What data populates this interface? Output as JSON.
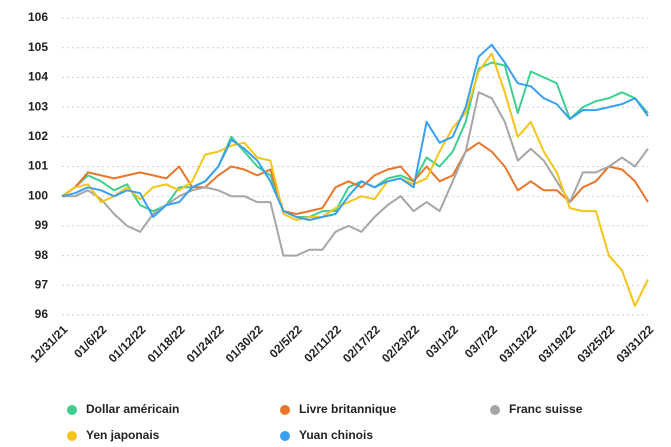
{
  "chart_data": {
    "type": "line",
    "categories": [
      "12/31/21",
      null,
      null,
      "01/6/22",
      null,
      null,
      "01/12/22",
      null,
      null,
      "01/18/22",
      null,
      null,
      "01/24/22",
      null,
      null,
      "01/30/22",
      null,
      null,
      "02/5/22",
      null,
      null,
      "02/11/22",
      null,
      null,
      "02/17/22",
      null,
      null,
      "02/23/22",
      null,
      null,
      "03/1/22",
      null,
      null,
      "03/7/22",
      null,
      null,
      "03/13/22",
      null,
      null,
      "03/19/22",
      null,
      null,
      "03/25/22",
      null,
      null,
      "03/31/22"
    ],
    "series": [
      {
        "name": "Dollar américain",
        "color": "#3ccf8e",
        "values": [
          100,
          100.3,
          100.7,
          100.5,
          100.2,
          100.4,
          99.7,
          99.5,
          99.7,
          100.3,
          100.3,
          100.5,
          101,
          102,
          101.5,
          101,
          100.7,
          99.5,
          99.3,
          99.3,
          99.5,
          99.5,
          100.3,
          100.5,
          100.3,
          100.6,
          100.7,
          100.5,
          101.3,
          101,
          101.5,
          102.5,
          104.3,
          104.5,
          104.4,
          102.8,
          104.2,
          104,
          103.8,
          102.6,
          103,
          103.2,
          103.3,
          103.5,
          103.3,
          102.8
        ]
      },
      {
        "name": "Livre britannique",
        "color": "#e8762b",
        "values": [
          100,
          100.3,
          100.8,
          100.7,
          100.6,
          100.7,
          100.8,
          100.7,
          100.6,
          101,
          100.3,
          100.3,
          100.7,
          101,
          100.9,
          100.7,
          100.9,
          99.5,
          99.4,
          99.5,
          99.6,
          100.3,
          100.5,
          100.3,
          100.7,
          100.9,
          101,
          100.5,
          101,
          100.5,
          100.7,
          101.5,
          101.8,
          101.5,
          101,
          100.2,
          100.5,
          100.2,
          100.2,
          99.8,
          100.3,
          100.5,
          101,
          100.9,
          100.5,
          99.8
        ]
      },
      {
        "name": "Franc suisse",
        "color": "#a6a6a6",
        "values": [
          100,
          100,
          100.2,
          99.9,
          99.4,
          99,
          98.8,
          99.4,
          99.7,
          100,
          100.2,
          100.3,
          100.2,
          100,
          100,
          99.8,
          99.8,
          98,
          98,
          98.2,
          98.2,
          98.8,
          99,
          98.8,
          99.3,
          99.7,
          100,
          99.5,
          99.8,
          99.5,
          100.5,
          101.5,
          103.5,
          103.3,
          102.5,
          101.2,
          101.6,
          101.2,
          100.5,
          99.8,
          100.8,
          100.8,
          101,
          101.3,
          101,
          101.6
        ]
      },
      {
        "name": "Yen japonais",
        "color": "#f5c518",
        "values": [
          100,
          100.3,
          100.4,
          99.8,
          100,
          100.3,
          99.9,
          100.3,
          100.4,
          100.2,
          100.5,
          101.4,
          101.5,
          101.7,
          101.8,
          101.3,
          101.2,
          99.4,
          99.2,
          99.3,
          99.3,
          99.6,
          99.8,
          100,
          99.9,
          100.5,
          100.6,
          100.4,
          100.6,
          101.5,
          102.3,
          102.8,
          104.2,
          104.8,
          103.5,
          102,
          102.5,
          101.5,
          100.8,
          99.6,
          99.5,
          99.5,
          98,
          97.5,
          96.3,
          97.2
        ]
      },
      {
        "name": "Yuan chinois",
        "color": "#3aa0f0",
        "values": [
          100,
          100.1,
          100.3,
          100.2,
          100,
          100.2,
          100.1,
          99.3,
          99.7,
          99.8,
          100.3,
          100.5,
          101,
          101.9,
          101.6,
          101.2,
          100.5,
          99.5,
          99.3,
          99.2,
          99.3,
          99.4,
          100,
          100.5,
          100.3,
          100.5,
          100.6,
          100.3,
          102.5,
          101.8,
          102,
          103,
          104.7,
          105.1,
          104.5,
          103.8,
          103.7,
          103.3,
          103.1,
          102.6,
          102.9,
          102.9,
          103,
          103.1,
          103.3,
          102.7
        ]
      }
    ],
    "ylim": [
      96,
      106
    ],
    "yticks": [
      96,
      97,
      98,
      99,
      100,
      101,
      102,
      103,
      104,
      105,
      106
    ],
    "grid": true,
    "legend": "bottom"
  }
}
